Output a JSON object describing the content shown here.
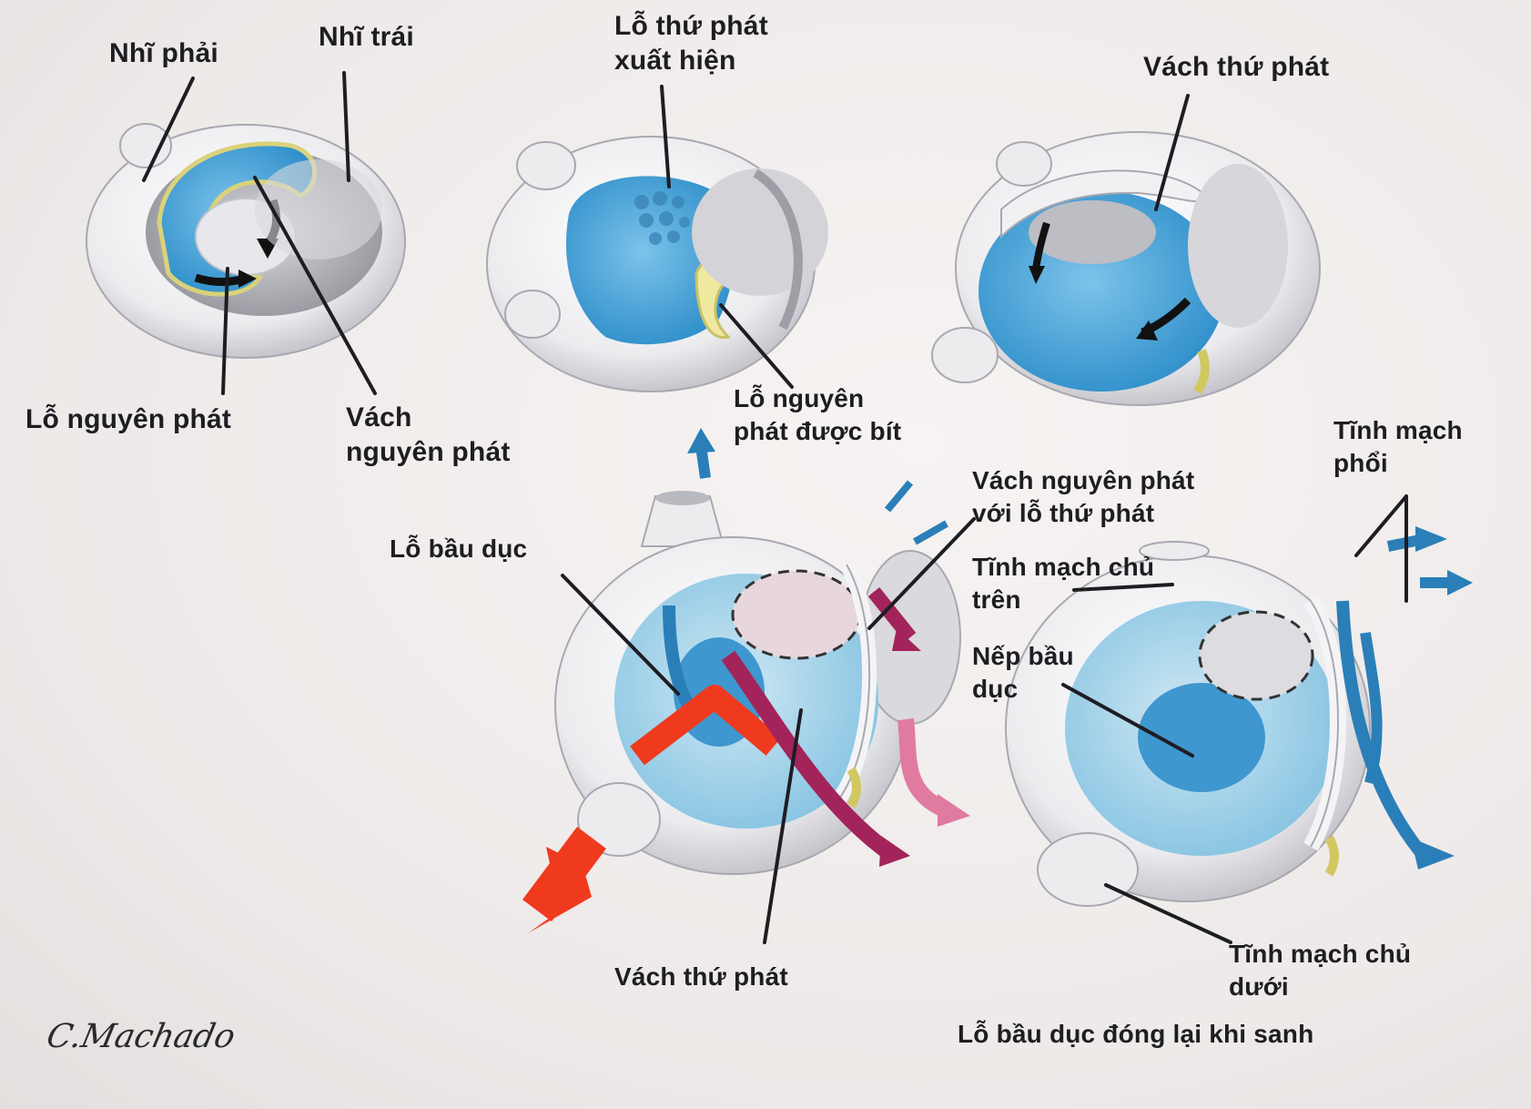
{
  "labels": {
    "nhi_phai": "Nhĩ phải",
    "nhi_trai": "Nhĩ trái",
    "lo_nguyen_phat": "Lỗ nguyên phát",
    "vach_nguyen_phat": "Vách\nnguyên phát",
    "lo_thu_phat_xuat_hien": "Lỗ thứ phát\nxuất hiện",
    "lo_nguyen_phat_duoc_bit": "Lỗ nguyên\nphát được bít",
    "vach_thu_phat_top": "Vách thứ phát",
    "tinh_mach_phoi": "Tĩnh mạch\nphổi",
    "vach_nguyen_phat_voi_lo_thu_phat": "Vách nguyên phát\nvới lỗ thứ phát",
    "tinh_mach_chu_tren": "Tĩnh mạch chủ\ntrên",
    "nep_bau_duc": "Nếp bầu\ndục",
    "lo_bau_duc": "Lỗ bầu dục",
    "vach_thu_phat_bottom": "Vách thứ phát",
    "tinh_mach_chu_duoi": "Tĩnh mạch chủ\ndưới",
    "caption": "Lỗ bầu dục đóng lại khi sanh",
    "signature": "C.Machado"
  },
  "colors": {
    "septum_blue": "#4fa8d8",
    "septum_dark_blue": "#2f86c0",
    "wall": "#f4f4f6",
    "wall_shade": "#c9c9cf",
    "arrow_red": "#f03a1e",
    "arrow_purple": "#a3245a",
    "arrow_pink": "#e07aa0",
    "vein_blue": "#2a7fb8",
    "yellow": "#e8df7a"
  }
}
